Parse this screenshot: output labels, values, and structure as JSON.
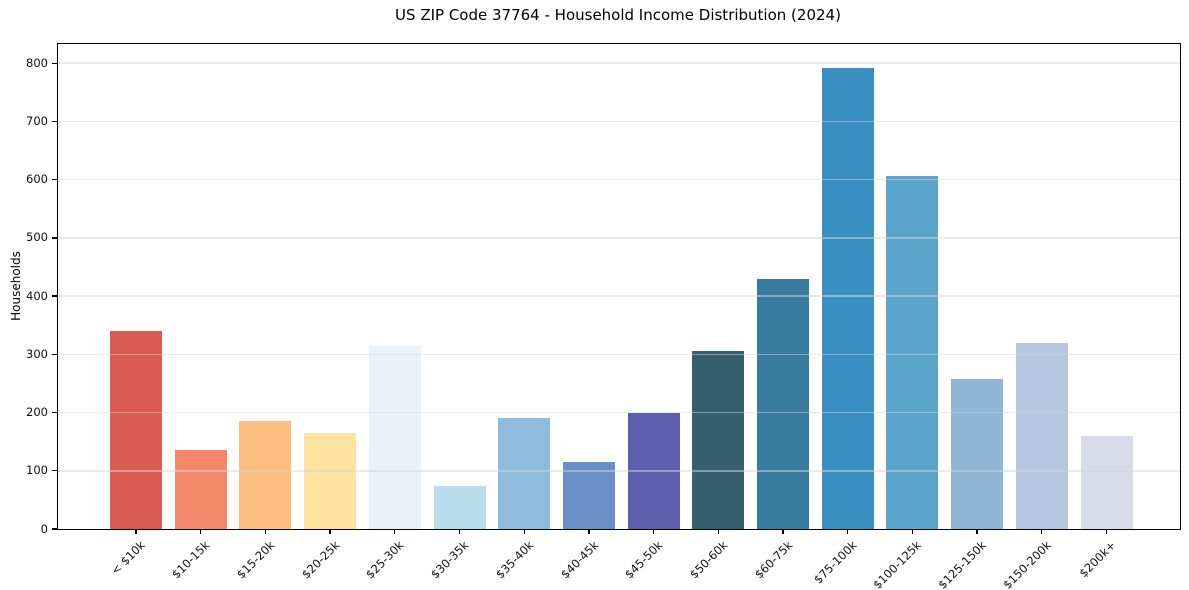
{
  "chart_data": {
    "type": "bar",
    "title": "US ZIP Code 37764 - Household Income Distribution (2024)",
    "xlabel": "",
    "ylabel": "Households",
    "categories": [
      "< $10k",
      "$10-15k",
      "$15-20k",
      "$20-25k",
      "$25-30k",
      "$30-35k",
      "$35-40k",
      "$40-45k",
      "$45-50k",
      "$50-60k",
      "$60-75k",
      "$75-100k",
      "$100-125k",
      "$125-150k",
      "$150-200k",
      "$200k+"
    ],
    "values": [
      340,
      136,
      186,
      165,
      314,
      74,
      191,
      115,
      200,
      305,
      429,
      792,
      606,
      257,
      319,
      159
    ],
    "bar_colors": [
      "#d95b52",
      "#f5886b",
      "#fcbd7f",
      "#fde2a0",
      "#e9f2f6",
      "#badcec",
      "#8fbcdc",
      "#6a8ec6",
      "#5c5fae",
      "#36606f",
      "#377c9e",
      "#398fc1",
      "#5ba4ca",
      "#8fb5d7",
      "#b6c7e1",
      "#d8dbe8"
    ],
    "ylim": [
      0,
      833
    ],
    "yticks": [
      0,
      100,
      200,
      300,
      400,
      500,
      600,
      700,
      800
    ],
    "grid": "horizontal",
    "legend": "none",
    "bar_width_fraction": 0.8
  }
}
